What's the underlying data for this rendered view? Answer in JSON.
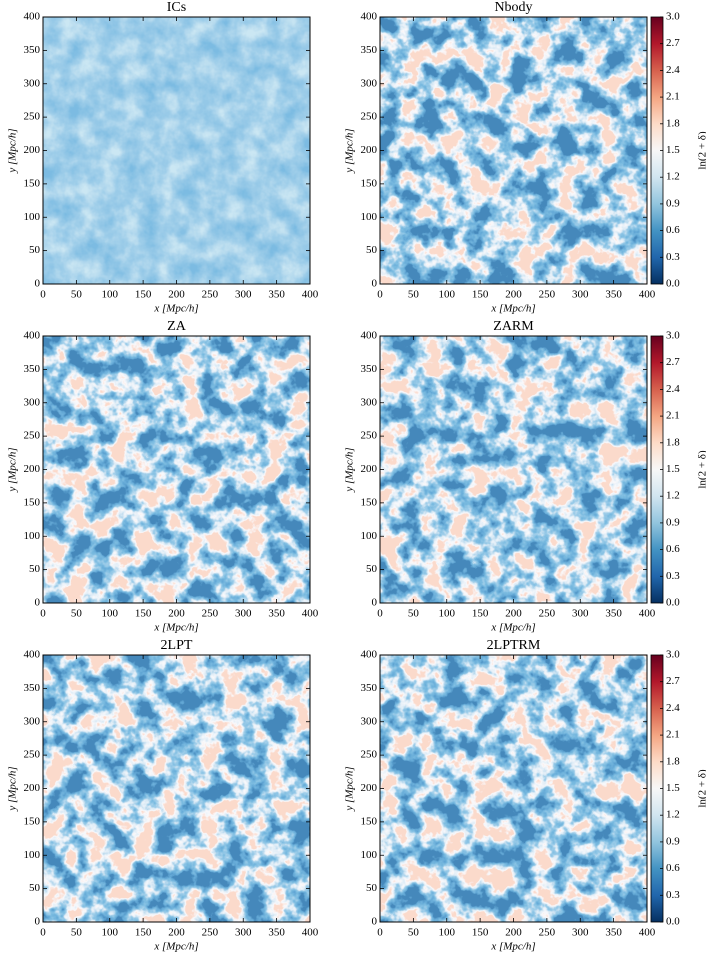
{
  "chart_data": [
    {
      "type": "heatmap",
      "title": "ICs",
      "xlabel": "x [Mpc/h]",
      "ylabel": "y [Mpc/h]",
      "xlim": [
        0,
        400
      ],
      "ylim": [
        0,
        400
      ],
      "xticks": [
        0,
        50,
        100,
        150,
        200,
        250,
        300,
        350,
        400
      ],
      "yticks": [
        0,
        50,
        100,
        150,
        200,
        250,
        300,
        350,
        400
      ]
    },
    {
      "type": "heatmap",
      "title": "Nbody",
      "xlabel": "x [Mpc/h]",
      "ylabel": "y [Mpc/h]",
      "xlim": [
        0,
        400
      ],
      "ylim": [
        0,
        400
      ],
      "xticks": [
        0,
        50,
        100,
        150,
        200,
        250,
        300,
        350,
        400
      ],
      "yticks": [
        0,
        50,
        100,
        150,
        200,
        250,
        300,
        350,
        400
      ],
      "colorbar": {
        "label": "ln(2 + δ)",
        "lim": [
          0,
          3
        ],
        "ticks": [
          {
            "value": 0,
            "label": "0.0"
          },
          0.3,
          0.6,
          0.9,
          1.2,
          1.5,
          1.8,
          2.1,
          2.4,
          2.7,
          {
            "value": 3,
            "label": "3.0"
          }
        ],
        "colormap": [
          "#053061",
          "#2166ac",
          "#4393c3",
          "#92c5de",
          "#d1e5f0",
          "#f7f7f7",
          "#fddbc7",
          "#f4a582",
          "#d6604d",
          "#b2182b",
          "#67001f"
        ]
      }
    },
    {
      "type": "heatmap",
      "title": "ZA",
      "xlabel": "x [Mpc/h]",
      "ylabel": "y [Mpc/h]",
      "xlim": [
        0,
        400
      ],
      "ylim": [
        0,
        400
      ],
      "xticks": [
        0,
        50,
        100,
        150,
        200,
        250,
        300,
        350,
        400
      ],
      "yticks": [
        0,
        50,
        100,
        150,
        200,
        250,
        300,
        350,
        400
      ]
    },
    {
      "type": "heatmap",
      "title": "ZARM",
      "xlabel": "x [Mpc/h]",
      "ylabel": "y [Mpc/h]",
      "xlim": [
        0,
        400
      ],
      "ylim": [
        0,
        400
      ],
      "xticks": [
        0,
        50,
        100,
        150,
        200,
        250,
        300,
        350,
        400
      ],
      "yticks": [
        0,
        50,
        100,
        150,
        200,
        250,
        300,
        350,
        400
      ],
      "colorbar": {
        "label": "ln(2 + δ)",
        "lim": [
          0,
          3
        ],
        "ticks": [
          {
            "value": 0,
            "label": "0.0"
          },
          0.3,
          0.6,
          0.9,
          1.2,
          1.5,
          1.8,
          2.1,
          2.4,
          2.7,
          {
            "value": 3,
            "label": "3.0"
          }
        ],
        "colormap": [
          "#053061",
          "#2166ac",
          "#4393c3",
          "#92c5de",
          "#d1e5f0",
          "#f7f7f7",
          "#fddbc7",
          "#f4a582",
          "#d6604d",
          "#b2182b",
          "#67001f"
        ]
      }
    },
    {
      "type": "heatmap",
      "title": "2LPT",
      "xlabel": "x [Mpc/h]",
      "ylabel": "y [Mpc/h]",
      "xlim": [
        0,
        400
      ],
      "ylim": [
        0,
        400
      ],
      "xticks": [
        0,
        50,
        100,
        150,
        200,
        250,
        300,
        350,
        400
      ],
      "yticks": [
        0,
        50,
        100,
        150,
        200,
        250,
        300,
        350,
        400
      ]
    },
    {
      "type": "heatmap",
      "title": "2LPTRM",
      "xlabel": "x [Mpc/h]",
      "ylabel": "y [Mpc/h]",
      "xlim": [
        0,
        400
      ],
      "ylim": [
        0,
        400
      ],
      "xticks": [
        0,
        50,
        100,
        150,
        200,
        250,
        300,
        350,
        400
      ],
      "yticks": [
        0,
        50,
        100,
        150,
        200,
        250,
        300,
        350,
        400
      ],
      "colorbar": {
        "label": "ln(2 + δ)",
        "lim": [
          0,
          3
        ],
        "ticks": [
          {
            "value": 0,
            "label": "0.0"
          },
          0.3,
          0.6,
          0.9,
          1.2,
          1.5,
          1.8,
          2.1,
          2.4,
          2.7,
          {
            "value": 3,
            "label": "3.0"
          }
        ],
        "colormap": [
          "#053061",
          "#2166ac",
          "#4393c3",
          "#92c5de",
          "#d1e5f0",
          "#f7f7f7",
          "#fddbc7",
          "#f4a582",
          "#d6604d",
          "#b2182b",
          "#67001f"
        ]
      }
    }
  ]
}
